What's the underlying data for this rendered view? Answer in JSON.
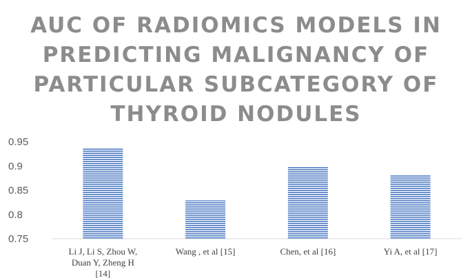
{
  "chart_data": {
    "type": "bar",
    "title": "AUC OF RADIOMICS MODELS IN\nPREDICTING MALIGNANCY OF\nPARTICULAR SUBCATEGORY OF\nTHYROID NODULES",
    "categories": [
      [
        "Li J, Li S, Zhou W,",
        "Duan Y, Zheng H",
        "[14]"
      ],
      [
        "Wang , et al [15]"
      ],
      [
        "Chen, et al [16]"
      ],
      [
        "Yi A, et al [17]"
      ]
    ],
    "values": [
      0.936,
      0.829,
      0.898,
      0.881
    ],
    "ylim": [
      0.75,
      0.95
    ],
    "yticks": [
      "0.95",
      "0.9",
      "0.85",
      "0.8",
      "0.75"
    ],
    "bar_color": "#4a78c2",
    "bar_pattern": "horizontal-stripes",
    "grid": false,
    "legend": "none"
  }
}
